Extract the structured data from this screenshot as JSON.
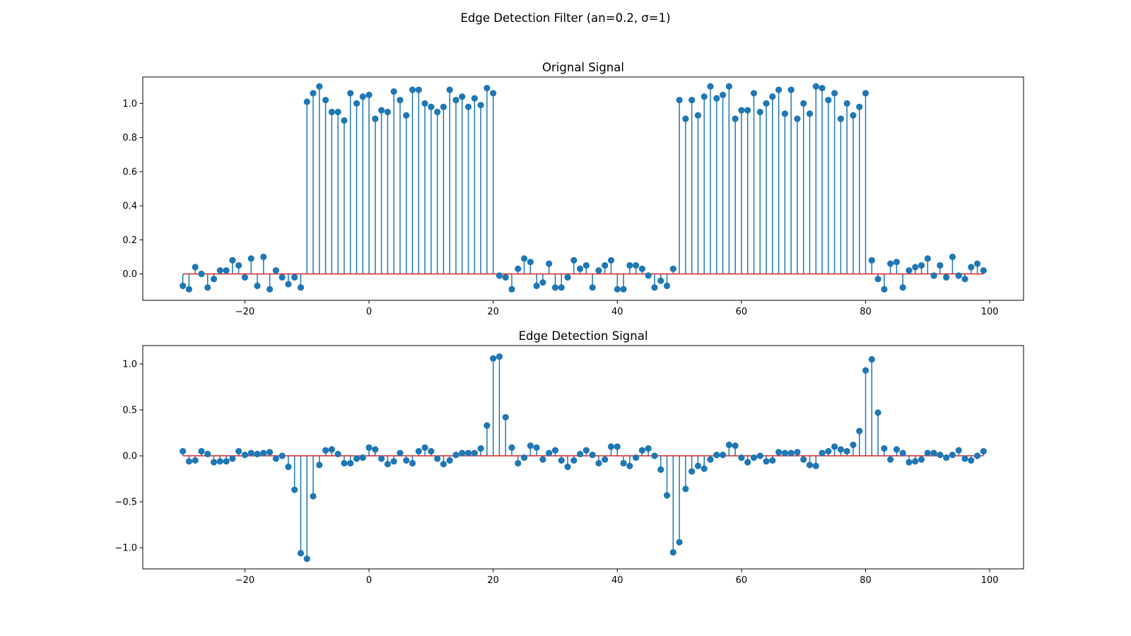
{
  "figure": {
    "suptitle": "Edge Detection Filter (an=0.2, σ=1)"
  },
  "colors": {
    "stem": "#1f77b4",
    "baseline": "#d62728",
    "axes": "#000000"
  },
  "chart_data": [
    {
      "type": "stem",
      "title": "Orignal Signal",
      "xlim": [
        -36.45,
        105.45
      ],
      "ylim": [
        -0.155,
        1.155
      ],
      "xticks": [
        -20,
        0,
        20,
        40,
        60,
        80,
        100
      ],
      "xtick_labels": [
        "−20",
        "0",
        "20",
        "40",
        "60",
        "80",
        "100"
      ],
      "yticks": [
        0.0,
        0.2,
        0.4,
        0.6,
        0.8,
        1.0
      ],
      "ytick_labels": [
        "0.0",
        "0.2",
        "0.4",
        "0.6",
        "0.8",
        "1.0"
      ],
      "baseline": 0,
      "x_start": -30,
      "x_end": 99,
      "y": [
        -0.07,
        -0.09,
        0.04,
        0.0,
        -0.08,
        -0.03,
        0.02,
        0.02,
        0.08,
        0.05,
        -0.02,
        0.09,
        -0.07,
        0.1,
        -0.09,
        0.02,
        -0.02,
        -0.06,
        -0.02,
        -0.08,
        1.01,
        1.06,
        1.1,
        1.02,
        0.95,
        0.95,
        0.9,
        1.06,
        1.0,
        1.04,
        1.05,
        0.91,
        0.96,
        0.95,
        1.07,
        1.02,
        0.93,
        1.08,
        1.08,
        1.0,
        0.98,
        0.95,
        0.98,
        1.08,
        1.02,
        1.04,
        0.98,
        1.03,
        0.99,
        1.09,
        1.06,
        -0.01,
        -0.02,
        -0.09,
        0.03,
        0.09,
        0.07,
        -0.07,
        -0.05,
        0.06,
        -0.08,
        -0.08,
        -0.02,
        0.08,
        0.03,
        0.05,
        -0.08,
        0.02,
        0.05,
        0.08,
        -0.09,
        -0.09,
        0.05,
        0.05,
        0.03,
        -0.01,
        -0.08,
        -0.04,
        -0.07,
        0.03,
        1.02,
        0.91,
        1.02,
        0.93,
        1.04,
        1.1,
        1.03,
        1.05,
        1.1,
        0.91,
        0.96,
        0.96,
        1.06,
        0.95,
        1.0,
        1.04,
        1.08,
        0.94,
        1.08,
        0.91,
        1.0,
        0.94,
        1.1,
        1.09,
        1.02,
        1.06,
        0.91,
        1.0,
        0.93,
        0.98,
        1.06,
        0.08,
        -0.03,
        -0.09,
        0.06,
        0.07,
        -0.08,
        0.02,
        0.04,
        0.05,
        0.09,
        -0.01,
        0.05,
        -0.02,
        0.1,
        -0.01,
        -0.03,
        0.04,
        0.06,
        0.02
      ]
    },
    {
      "type": "stem",
      "title": "Edge Detection Signal",
      "xlim": [
        -36.45,
        105.45
      ],
      "ylim": [
        -1.23,
        1.2
      ],
      "xticks": [
        -20,
        0,
        20,
        40,
        60,
        80,
        100
      ],
      "xtick_labels": [
        "−20",
        "0",
        "20",
        "40",
        "60",
        "80",
        "100"
      ],
      "yticks": [
        -1.0,
        -0.5,
        0.0,
        0.5,
        1.0
      ],
      "ytick_labels": [
        "−1.0",
        "−0.5",
        "0.0",
        "0.5",
        "1.0"
      ],
      "baseline": 0,
      "x_start": -30,
      "x_end": 99,
      "y": [
        0.05,
        -0.06,
        -0.05,
        0.05,
        0.02,
        -0.07,
        -0.06,
        -0.06,
        -0.03,
        0.05,
        0.01,
        0.03,
        0.02,
        0.03,
        0.04,
        -0.03,
        0.0,
        -0.12,
        -0.37,
        -1.06,
        -1.12,
        -0.44,
        -0.1,
        0.06,
        0.07,
        0.02,
        -0.08,
        -0.08,
        -0.03,
        -0.02,
        0.09,
        0.07,
        -0.03,
        -0.09,
        -0.06,
        0.03,
        -0.05,
        -0.08,
        0.05,
        0.09,
        0.05,
        -0.03,
        -0.09,
        -0.05,
        0.01,
        0.03,
        0.03,
        0.03,
        0.08,
        0.33,
        1.06,
        1.08,
        0.42,
        0.09,
        -0.08,
        -0.02,
        0.11,
        0.09,
        -0.04,
        0.03,
        0.06,
        -0.05,
        -0.12,
        -0.05,
        0.02,
        0.06,
        0.01,
        -0.08,
        -0.04,
        0.1,
        0.1,
        -0.08,
        -0.11,
        -0.02,
        0.06,
        0.08,
        0.0,
        -0.15,
        -0.43,
        -1.05,
        -0.94,
        -0.36,
        -0.17,
        -0.11,
        -0.14,
        -0.04,
        0.01,
        0.01,
        0.12,
        0.11,
        -0.02,
        -0.07,
        -0.02,
        0.0,
        -0.06,
        -0.05,
        0.04,
        0.03,
        0.03,
        0.04,
        -0.04,
        -0.1,
        -0.11,
        0.03,
        0.05,
        0.1,
        0.07,
        0.05,
        0.12,
        0.27,
        0.93,
        1.05,
        0.47,
        0.08,
        -0.04,
        0.07,
        0.03,
        -0.07,
        -0.06,
        -0.04,
        0.03,
        0.03,
        0.01,
        -0.02,
        0.01,
        0.06,
        -0.03,
        -0.05,
        0.0,
        0.05
      ]
    }
  ]
}
